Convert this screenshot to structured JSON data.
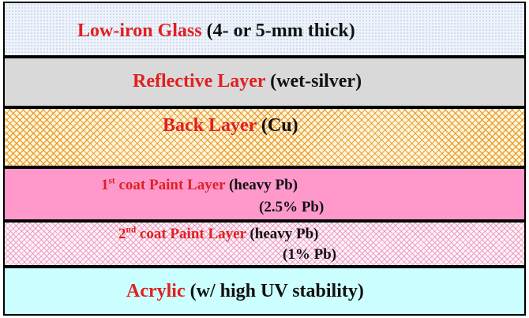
{
  "layers": [
    {
      "name": "Low-iron Glass",
      "detail": "(4- or 5-mm thick)",
      "color": "#eef3fb"
    },
    {
      "name": "Reflective Layer",
      "detail": "(wet-silver)",
      "color": "#d9d9d9"
    },
    {
      "name": "Back Layer",
      "detail": "(Cu)",
      "color": "#f0a030"
    },
    {
      "name_num": "1",
      "name_sup": "st",
      "name": "coat Paint Layer",
      "detail": "(heavy Pb)",
      "detail2": "(2.5% Pb)",
      "color": "#ff99cc"
    },
    {
      "name_num": "2",
      "name_sup": "nd",
      "name": "coat Paint Layer",
      "detail": "(heavy Pb)",
      "detail2": "(1% Pb)",
      "color": "#ffc0dd"
    },
    {
      "name": "Acrylic",
      "detail": "(w/ high UV stability)",
      "color": "#ccffff"
    }
  ]
}
